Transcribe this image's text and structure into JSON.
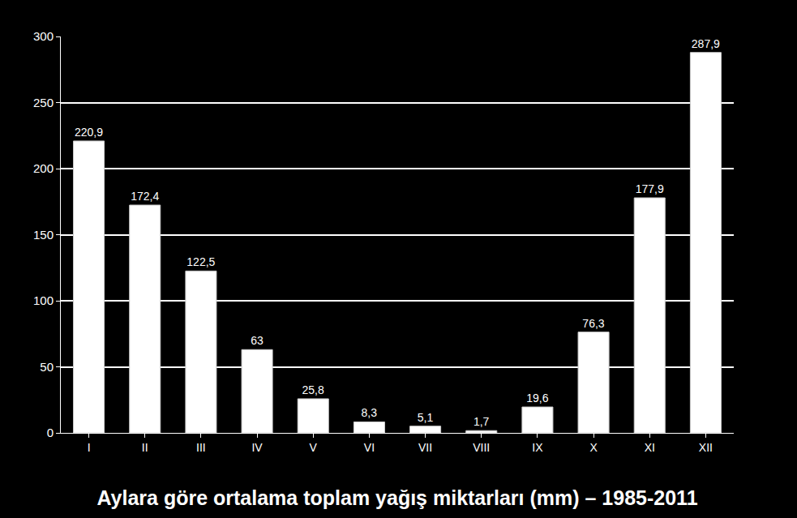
{
  "chart_data": {
    "type": "bar",
    "title": "Aylara göre ortalama toplam yağış miktarları (mm) – 1985-2011",
    "categories": [
      "I",
      "II",
      "III",
      "IV",
      "V",
      "VI",
      "VII",
      "VIII",
      "IX",
      "X",
      "XI",
      "XII"
    ],
    "values": [
      220.9,
      172.4,
      122.5,
      63,
      25.8,
      8.3,
      5.1,
      1.7,
      19.6,
      76.3,
      177.9,
      287.9
    ],
    "value_labels": [
      "220,9",
      "172,4",
      "122,5",
      "63",
      "25,8",
      "8,3",
      "5,1",
      "1,7",
      "19,6",
      "76,3",
      "177,9",
      "287,9"
    ],
    "color": "#ffffff",
    "ylim": [
      0,
      300
    ],
    "yticks": [
      0,
      50,
      100,
      150,
      200,
      250,
      300
    ],
    "grid": true,
    "data_labels": true
  }
}
